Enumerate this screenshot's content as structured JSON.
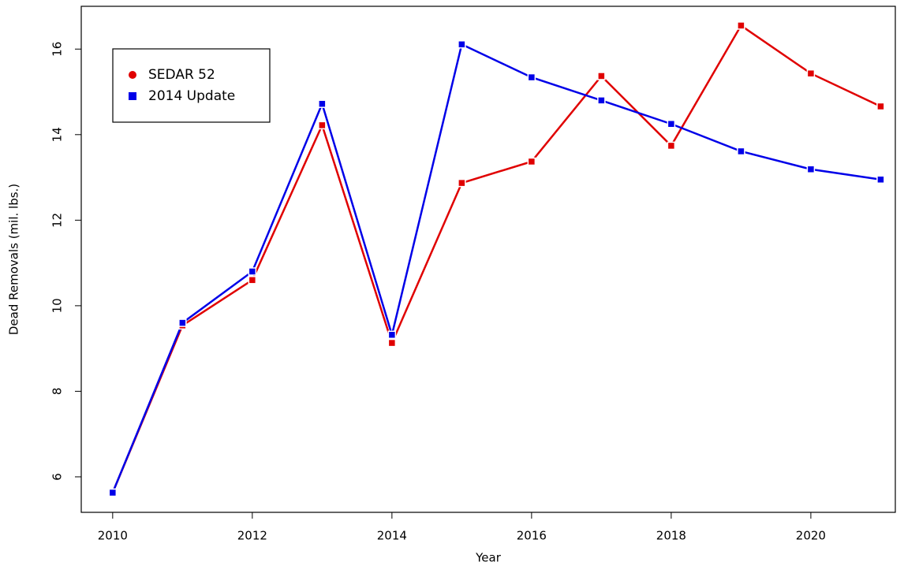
{
  "chart_data": {
    "type": "line",
    "xlabel": "Year",
    "ylabel": "Dead Removals (mil. lbs.)",
    "x": [
      2010,
      2011,
      2012,
      2013,
      2014,
      2015,
      2016,
      2017,
      2018,
      2019,
      2020,
      2021
    ],
    "series": [
      {
        "name": "SEDAR 52",
        "color": "#e00000",
        "legend_marker": "circle",
        "values": [
          5.63,
          9.54,
          10.6,
          14.22,
          9.13,
          12.87,
          13.37,
          15.37,
          13.74,
          16.55,
          15.43,
          14.66
        ]
      },
      {
        "name": "2014 Update",
        "color": "#0000e8",
        "legend_marker": "square",
        "values": [
          5.63,
          9.6,
          10.8,
          14.72,
          9.32,
          16.11,
          15.34,
          14.8,
          14.25,
          13.61,
          13.19,
          12.95
        ]
      }
    ],
    "xlim": [
      2009.55,
      2021.21
    ],
    "ylim": [
      5.17,
      17.0
    ],
    "xticks": [
      2010,
      2012,
      2014,
      2016,
      2018,
      2020
    ],
    "yticks": [
      6,
      8,
      10,
      12,
      14,
      16
    ],
    "legend": "top-left",
    "grid": false
  }
}
